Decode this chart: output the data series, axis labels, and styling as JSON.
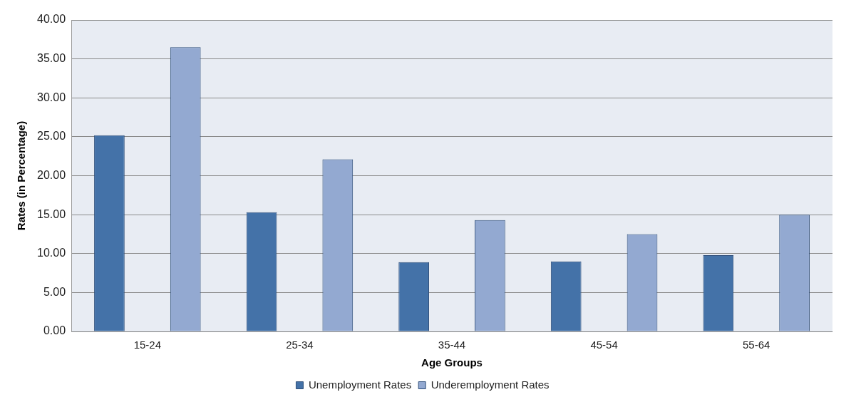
{
  "chart_data": {
    "type": "bar",
    "xlabel": "Age Groups",
    "ylabel": "Rates (in Percentage)",
    "categories": [
      "15-24",
      "25-34",
      "35-44",
      "45-54",
      "55-64"
    ],
    "series": [
      {
        "name": "Unemployment Rates",
        "color": "#4472a8",
        "values": [
          25.2,
          15.3,
          8.9,
          9.0,
          9.8
        ]
      },
      {
        "name": "Underemployment Rates",
        "color": "#93a9d1",
        "values": [
          36.5,
          22.1,
          14.3,
          12.5,
          15.0
        ]
      }
    ],
    "ylim": [
      0,
      40
    ],
    "yticks": [
      {
        "value": 0,
        "label": "0.00"
      },
      {
        "value": 5,
        "label": "5.00"
      },
      {
        "value": 10,
        "label": "10.00"
      },
      {
        "value": 15,
        "label": "15.00"
      },
      {
        "value": 20,
        "label": "20.00"
      },
      {
        "value": 25,
        "label": "25.00"
      },
      {
        "value": 30,
        "label": "30.00"
      },
      {
        "value": 35,
        "label": "35.00"
      },
      {
        "value": 40,
        "label": "40.00"
      }
    ],
    "grid": "y",
    "legend": "bottom"
  }
}
